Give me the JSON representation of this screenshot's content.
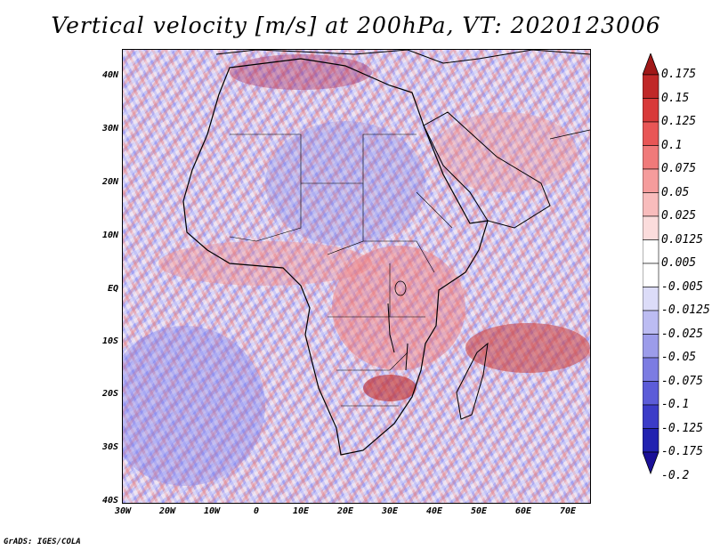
{
  "title": "Vertical velocity [m/s] at 200hPa, VT: 2020123006",
  "footer": "GrADS: IGES/COLA",
  "map": {
    "region": "Africa",
    "lat_labels": [
      "40N",
      "30N",
      "20N",
      "10N",
      "EQ",
      "10S",
      "20S",
      "30S",
      "40S"
    ],
    "lon_labels": [
      "30W",
      "20W",
      "10W",
      "0",
      "10E",
      "20E",
      "30E",
      "40E",
      "50E",
      "60E",
      "70E"
    ]
  },
  "colorbar": {
    "labels": [
      "0.175",
      "0.15",
      "0.125",
      "0.1",
      "0.075",
      "0.05",
      "0.025",
      "0.0125",
      "0.005",
      "-0.005",
      "-0.0125",
      "-0.025",
      "-0.05",
      "-0.075",
      "-0.1",
      "-0.125",
      "-0.175",
      "-0.2"
    ],
    "colors": [
      "#a01818",
      "#c02828",
      "#d83a3a",
      "#e85656",
      "#f07a7a",
      "#f59c9c",
      "#f8bcbc",
      "#fbdcdc",
      "#ffffff",
      "#ffffff",
      "#dcdcf8",
      "#bcbcf2",
      "#9c9cea",
      "#7c7ce2",
      "#5c5cd8",
      "#3c3cc8",
      "#2222b0",
      "#1a1098"
    ]
  }
}
